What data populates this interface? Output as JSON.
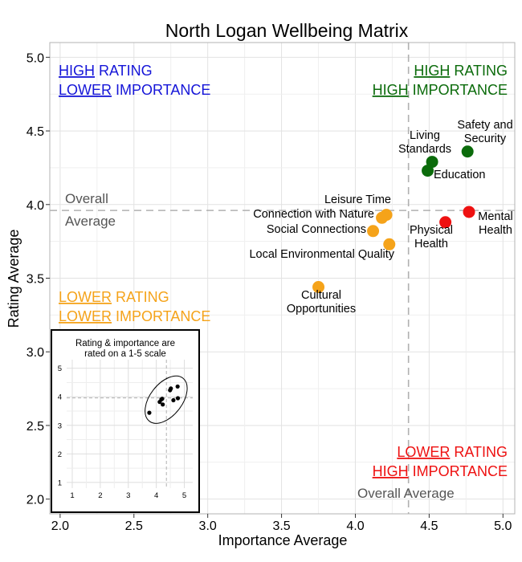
{
  "chart_data": {
    "type": "scatter",
    "title": "North Logan Wellbeing Matrix",
    "xlabel": "Importance Average",
    "ylabel": "Rating Average",
    "xlim": [
      1.93,
      5.08
    ],
    "ylim": [
      1.9,
      5.1
    ],
    "x_ticks": [
      "2.0",
      "2.5",
      "3.0",
      "3.5",
      "4.0",
      "4.5",
      "5.0"
    ],
    "y_ticks": [
      "2.0",
      "2.5",
      "3.0",
      "3.5",
      "4.0",
      "4.5",
      "5.0"
    ],
    "grid": true,
    "reference_lines": {
      "overall_importance": 4.36,
      "overall_rating": 3.96,
      "rating_label": [
        "Overall",
        "Average"
      ],
      "importance_label": "Overall Average"
    },
    "colors": {
      "green": "#0b6b0b",
      "red": "#ee1111",
      "orange": "#f5a31a",
      "blue": "#1515d8",
      "gray": "#555555"
    },
    "quadrants": [
      {
        "id": "tl",
        "line1": [
          "HIGH",
          " RATING"
        ],
        "line2": [
          "LOWER",
          " IMPORTANCE"
        ],
        "color": "#1515d8"
      },
      {
        "id": "tr",
        "line1": [
          "HIGH",
          " RATING"
        ],
        "line2": [
          "HIGH",
          " IMPORTANCE"
        ],
        "color": "#0b6b0b"
      },
      {
        "id": "bl",
        "line1": [
          "LOWER",
          " RATING"
        ],
        "line2": [
          "LOWER",
          " IMPORTANCE"
        ],
        "color": "#f5a31a"
      },
      {
        "id": "br",
        "line1": [
          "LOWER",
          " RATING"
        ],
        "line2": [
          "HIGH",
          " IMPORTANCE"
        ],
        "color": "#ee1111"
      }
    ],
    "points": [
      {
        "label": [
          "Safety and",
          "Security"
        ],
        "x": 4.76,
        "y": 4.36,
        "color": "#0b6b0b"
      },
      {
        "label": [
          "Living",
          "Standards"
        ],
        "x": 4.52,
        "y": 4.29,
        "color": "#0b6b0b"
      },
      {
        "label": [
          "Education"
        ],
        "x": 4.49,
        "y": 4.23,
        "color": "#0b6b0b"
      },
      {
        "label": [
          "Mental",
          "Health"
        ],
        "x": 4.77,
        "y": 3.95,
        "color": "#ee1111"
      },
      {
        "label": [
          "Physical",
          "Health"
        ],
        "x": 4.61,
        "y": 3.88,
        "color": "#ee1111"
      },
      {
        "label": [
          "Leisure Time"
        ],
        "x": 4.21,
        "y": 3.93,
        "color": "#f5a31a"
      },
      {
        "label": [
          "Connection with Nature"
        ],
        "x": 4.18,
        "y": 3.91,
        "color": "#f5a31a"
      },
      {
        "label": [
          "Social Connections"
        ],
        "x": 4.12,
        "y": 3.82,
        "color": "#f5a31a"
      },
      {
        "label": [
          "Local Environmental Quality"
        ],
        "x": 4.23,
        "y": 3.73,
        "color": "#f5a31a"
      },
      {
        "label": [
          "Cultural",
          "Opportunities"
        ],
        "x": 3.75,
        "y": 3.44,
        "color": "#f5a31a"
      }
    ],
    "inset": {
      "caption": [
        "Rating & importance are",
        "rated on a 1-5 scale"
      ],
      "xlim": [
        0.8,
        5.3
      ],
      "ylim": [
        0.8,
        5.3
      ],
      "ticks": [
        "1",
        "2",
        "3",
        "4",
        "5"
      ],
      "overall_importance": 4.36,
      "overall_rating": 3.96
    }
  }
}
